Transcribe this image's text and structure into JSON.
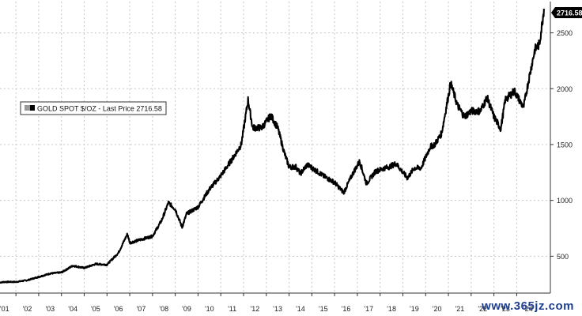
{
  "chart_data": {
    "type": "line",
    "title": "",
    "xlabel": "",
    "ylabel": "",
    "legend": {
      "label": "GOLD SPOT $/OZ - Last Price 2716.58",
      "placement": "top-left"
    },
    "last_price_label": "2716.58",
    "ylim": [
      170,
      2780
    ],
    "y_ticks": [
      500,
      1000,
      1500,
      2000,
      2500
    ],
    "y_tick_labels": [
      "500",
      "1000",
      "1500",
      "2000",
      "2500"
    ],
    "x_ticks": [
      2001,
      2002,
      2003,
      2004,
      2005,
      2006,
      2007,
      2008,
      2009,
      2010,
      2011,
      2012,
      2013,
      2014,
      2015,
      2016,
      2017,
      2018,
      2019,
      2020,
      2021,
      2022,
      2023,
      2024
    ],
    "x_tick_labels": [
      "'01",
      "'02",
      "'03",
      "'04",
      "'05",
      "'06",
      "'07",
      "'08",
      "'09",
      "'10",
      "'11",
      "'12",
      "'13",
      "'14",
      "'15",
      "'16",
      "'17",
      "'18",
      "'19",
      "'20",
      "'21",
      "'22",
      "'23",
      "'24"
    ],
    "grid": true,
    "line_color": "#000000",
    "series": [
      {
        "x": [
          2000.8,
          2001.0,
          2001.5,
          2002.0,
          2002.5,
          2003.0,
          2003.5,
          2004.0,
          2004.5,
          2005.0,
          2005.5,
          2006.0,
          2006.4,
          2006.5,
          2007.0,
          2007.5,
          2007.9,
          2008.2,
          2008.5,
          2008.8,
          2009.0,
          2009.5,
          2010.0,
          2010.5,
          2011.0,
          2011.4,
          2011.7,
          2011.9,
          2012.0,
          2012.3,
          2012.7,
          2013.0,
          2013.3,
          2013.5,
          2013.8,
          2014.0,
          2014.3,
          2014.8,
          2015.0,
          2015.5,
          2015.9,
          2016.3,
          2016.6,
          2016.9,
          2017.3,
          2017.7,
          2017.9,
          2018.2,
          2018.7,
          2019.0,
          2019.3,
          2019.7,
          2019.9,
          2020.2,
          2020.6,
          2020.9,
          2021.2,
          2021.5,
          2021.9,
          2022.2,
          2022.5,
          2022.8,
          2023.0,
          2023.4,
          2023.8,
          2024.0,
          2024.3,
          2024.5,
          2024.7
        ],
        "values": [
          265,
          270,
          270,
          285,
          315,
          345,
          355,
          415,
          395,
          430,
          425,
          530,
          700,
          620,
          650,
          680,
          820,
          980,
          920,
          760,
          880,
          940,
          1100,
          1220,
          1370,
          1500,
          1900,
          1650,
          1650,
          1650,
          1760,
          1650,
          1420,
          1300,
          1300,
          1240,
          1320,
          1250,
          1220,
          1160,
          1070,
          1240,
          1350,
          1150,
          1260,
          1290,
          1300,
          1330,
          1200,
          1290,
          1290,
          1480,
          1500,
          1600,
          2050,
          1850,
          1750,
          1800,
          1800,
          1920,
          1750,
          1640,
          1900,
          1980,
          1830,
          2050,
          2350,
          2400,
          2716.58
        ]
      }
    ]
  },
  "watermark_text": "www.365jz.com"
}
